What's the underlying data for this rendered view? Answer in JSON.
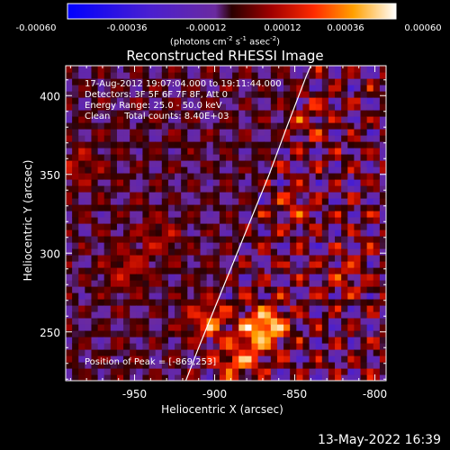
{
  "colorbar": {
    "ticks": [
      "-0.00060",
      "-0.00036",
      "-0.00012",
      "0.00012",
      "0.00036",
      "0.00060"
    ],
    "units_text": "(photons cm",
    "units_exp1": "-2",
    "units_mid": " s",
    "units_exp2": "-1",
    "units_mid2": " asec",
    "units_exp3": "-2",
    "units_end": ")"
  },
  "title": "Reconstructed RHESSI Image",
  "info": {
    "line1": "17-Aug-2012 19:07:04.000 to 19:11:44.000",
    "line2": "Detectors: 3F 5F 6F 7F 8F, Att 0",
    "line3": "Energy Range: 25.0 - 50.0 keV",
    "line4": "Clean     Total counts: 8.40E+03"
  },
  "peak_label": "Position of Peak = [-869,253]",
  "timestamp": "13-May-2022 16:39",
  "chart_data": {
    "type": "heatmap",
    "title": "Reconstructed RHESSI Image",
    "xlabel": "Heliocentric X (arcsec)",
    "ylabel": "Heliocentric Y (arcsec)",
    "xlim": [
      -993,
      -793
    ],
    "ylim": [
      219,
      419
    ],
    "x_ticks": [
      -950,
      -900,
      -850,
      -800
    ],
    "y_ticks": [
      250,
      300,
      350,
      400
    ],
    "x_tick_labels": [
      "-950",
      "-900",
      "-850",
      "-800"
    ],
    "y_tick_labels": [
      "250",
      "300",
      "350",
      "400"
    ],
    "colorbar_range": [
      -0.0006,
      0.0006
    ],
    "peak": {
      "x": -869,
      "y": 253
    },
    "sources": [
      {
        "x": -869,
        "y": 253,
        "amp": 1.0
      },
      {
        "x": -905,
        "y": 258,
        "amp": 0.7
      },
      {
        "x": -885,
        "y": 232,
        "amp": 0.55
      },
      {
        "x": -955,
        "y": 290,
        "amp": 0.45
      },
      {
        "x": -935,
        "y": 310,
        "amp": 0.4
      },
      {
        "x": -985,
        "y": 355,
        "amp": 0.4
      },
      {
        "x": -840,
        "y": 385,
        "amp": 0.35
      },
      {
        "x": -850,
        "y": 330,
        "amp": 0.3
      },
      {
        "x": -815,
        "y": 285,
        "amp": 0.3
      }
    ],
    "limb_curve": [
      [
        -918,
        219
      ],
      [
        -910,
        240
      ],
      [
        -900,
        265
      ],
      [
        -888,
        295
      ],
      [
        -876,
        325
      ],
      [
        -866,
        350
      ],
      [
        -855,
        380
      ],
      [
        -843,
        412
      ],
      [
        -840,
        419
      ]
    ]
  }
}
